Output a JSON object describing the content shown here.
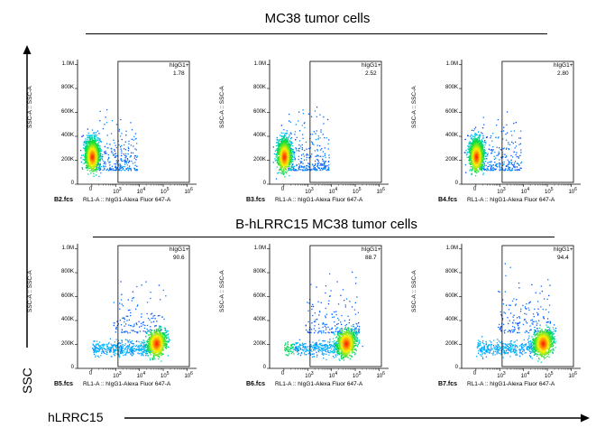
{
  "titles": {
    "top": "MC38 tumor cells",
    "bottom": "B-hLRRC15 MC38 tumor cells"
  },
  "axes": {
    "big_y": "SSC",
    "big_x": "hLRRC15",
    "panel_y": "SSC-A :: SSC-A",
    "panel_x": "RL1-A :: hIgG1-Alexa Fluor 647-A",
    "y_ticks": [
      "1.0M",
      "800K",
      "600K",
      "400K",
      "200K",
      "0"
    ],
    "x_ticks": [
      "0",
      "10",
      "10",
      "10",
      "10"
    ],
    "x_exps": [
      "",
      "3",
      "4",
      "5",
      "6"
    ]
  },
  "colors": {
    "background": "#ffffff",
    "axis": "#000000",
    "density_low": "#0a1aff",
    "density_high": "#ff2000"
  },
  "chart_data": [
    {
      "type": "scatter",
      "sample": "B2.fcs",
      "gate": "hIgG1+",
      "percent": "1.78",
      "xlabel": "RL1-A :: hIgG1-Alexa Fluor 647-A",
      "ylabel": "SSC-A :: SSC-A",
      "ylim": [
        0,
        1000000
      ],
      "population": "negative",
      "gate_x_min": 1000
    },
    {
      "type": "scatter",
      "sample": "B3.fcs",
      "gate": "hIgG1+",
      "percent": "2.52",
      "xlabel": "RL1-A :: hIgG1-Alexa Fluor 647-A",
      "ylabel": "SSC-A :: SSC-A",
      "ylim": [
        0,
        1000000
      ],
      "population": "negative",
      "gate_x_min": 1000
    },
    {
      "type": "scatter",
      "sample": "B4.fcs",
      "gate": "hIgG1+",
      "percent": "2.80",
      "xlabel": "RL1-A :: hIgG1-Alexa Fluor 647-A",
      "ylabel": "SSC-A :: SSC-A",
      "ylim": [
        0,
        1000000
      ],
      "population": "negative",
      "gate_x_min": 1000
    },
    {
      "type": "scatter",
      "sample": "B5.fcs",
      "gate": "hIgG1+",
      "percent": "90.6",
      "xlabel": "RL1-A :: hIgG1-Alexa Fluor 647-A",
      "ylabel": "SSC-A :: SSC-A",
      "ylim": [
        0,
        1000000
      ],
      "population": "positive",
      "gate_x_min": 1000
    },
    {
      "type": "scatter",
      "sample": "B6.fcs",
      "gate": "hIgG1+",
      "percent": "88.7",
      "xlabel": "RL1-A :: hIgG1-Alexa Fluor 647-A",
      "ylabel": "SSC-A :: SSC-A",
      "ylim": [
        0,
        1000000
      ],
      "population": "positive",
      "gate_x_min": 1000
    },
    {
      "type": "scatter",
      "sample": "B7.fcs",
      "gate": "hIgG1+",
      "percent": "94.4",
      "xlabel": "RL1-A :: hIgG1-Alexa Fluor 647-A",
      "ylabel": "SSC-A :: SSC-A",
      "ylim": [
        0,
        1000000
      ],
      "population": "positive",
      "gate_x_min": 1000
    }
  ]
}
